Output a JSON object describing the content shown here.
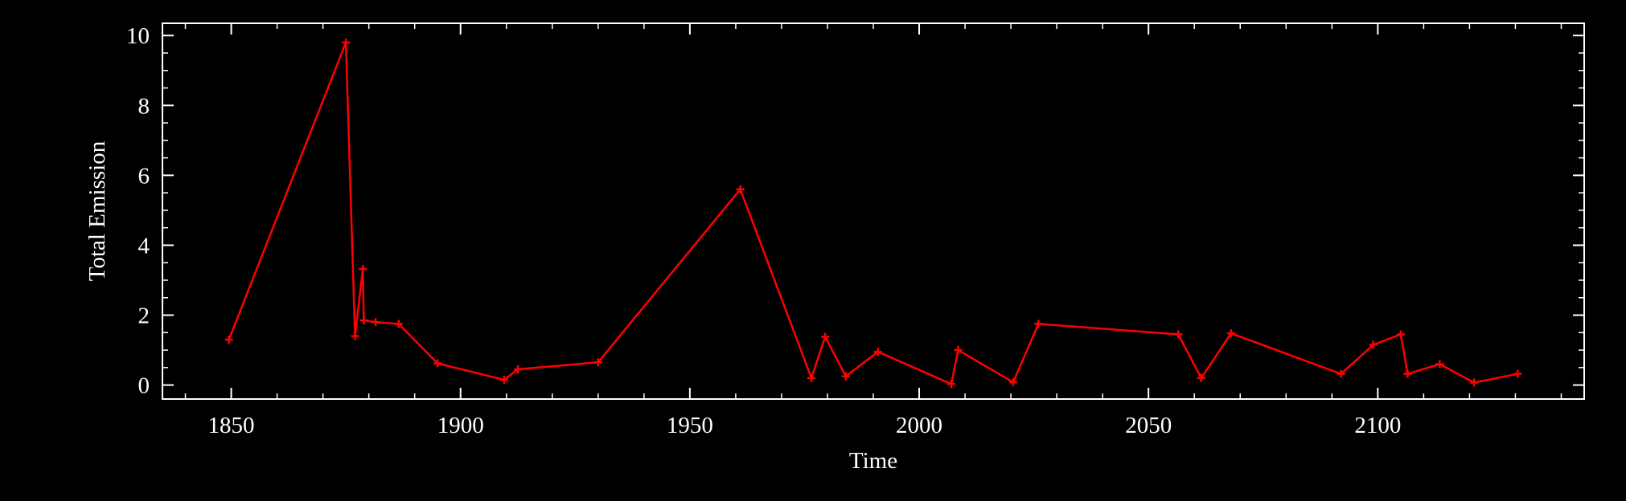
{
  "chart_data": {
    "type": "line",
    "title": "",
    "xlabel": "Time",
    "ylabel": "Total Emission",
    "xlim": [
      1835,
      2145
    ],
    "ylim": [
      -0.4,
      10.35
    ],
    "xticks": [
      1850,
      1900,
      1950,
      2000,
      2050,
      2100
    ],
    "xtick_labels": [
      "1850",
      "1900",
      "1950",
      "2000",
      "2050",
      "2100"
    ],
    "yticks": [
      0,
      2,
      4,
      6,
      8,
      10
    ],
    "ytick_labels": [
      "0",
      "2",
      "4",
      "6",
      "8",
      "10"
    ],
    "grid": false,
    "legend": "none",
    "colors": {
      "background": "#000000",
      "axes": "#ffffff",
      "line": "#ff0000"
    },
    "series": [
      {
        "marker": "plus",
        "x": [
          1849.5,
          1875,
          1877,
          1878.7,
          1878.9,
          1881.5,
          1886.5,
          1895,
          1909.5,
          1912.5,
          1930,
          1961,
          1976.5,
          1979.5,
          1984,
          1991,
          2007,
          2008.5,
          2020.5,
          2026,
          2056.5,
          2061.5,
          2068,
          2092,
          2099,
          2105,
          2106.5,
          2113.5,
          2121,
          2130.5
        ],
        "y": [
          1.3,
          9.8,
          1.4,
          3.32,
          1.85,
          1.8,
          1.75,
          0.62,
          0.15,
          0.45,
          0.65,
          5.6,
          0.2,
          1.38,
          0.25,
          0.95,
          0.03,
          1.0,
          0.08,
          1.75,
          1.45,
          0.2,
          1.48,
          0.32,
          1.15,
          1.45,
          0.32,
          0.6,
          0.07,
          0.32
        ]
      }
    ]
  }
}
